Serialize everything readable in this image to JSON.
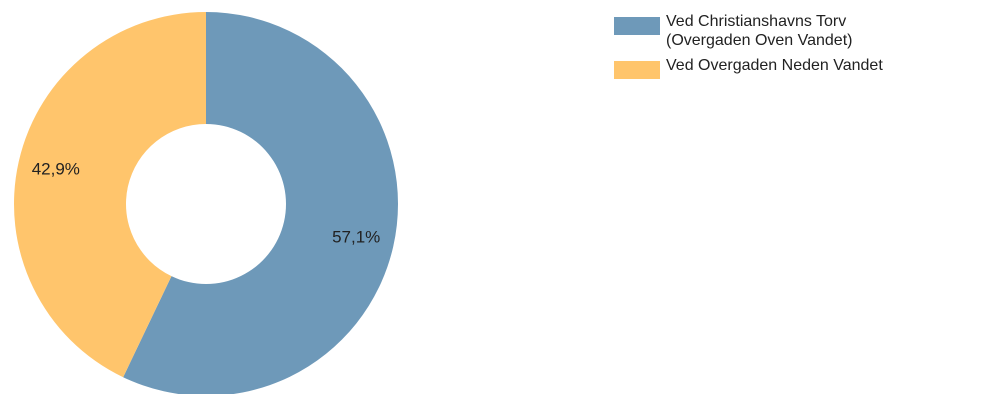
{
  "chart_data": {
    "type": "pie",
    "donut": true,
    "title": "",
    "legend_position": "top-right",
    "series": [
      {
        "label_lines": [
          "Ved Christianshavns Torv",
          "(Overgaden Oven Vandet)"
        ],
        "value": 57.1,
        "value_label": "57,1%",
        "color": "#6e99b9"
      },
      {
        "label_lines": [
          "Ved Overgaden Neden Vandet"
        ],
        "value": 42.9,
        "value_label": "42,9%",
        "color": "#ffc56c"
      }
    ]
  }
}
